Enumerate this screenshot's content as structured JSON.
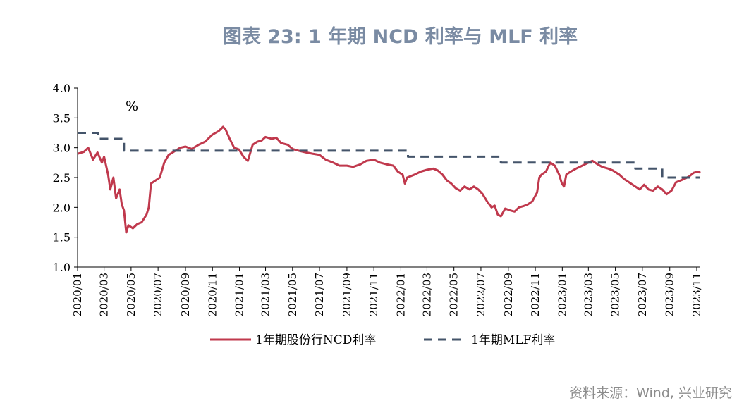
{
  "title": "图表 23: 1 年期 NCD 利率与 MLF 利率",
  "source": "资料来源：Wind, 兴业研究",
  "chart_data": {
    "type": "line",
    "title": "图表 23: 1 年期 NCD 利率与 MLF 利率",
    "unit_label": "%",
    "xlabel": "",
    "ylabel": "%",
    "x_range": [
      "2020-01-01",
      "2023-11-09"
    ],
    "ylim": [
      1.0,
      4.0
    ],
    "y_ticks": [
      "1.0",
      "1.5",
      "2.0",
      "2.5",
      "3.0",
      "3.5",
      "4.0"
    ],
    "x_ticks": [
      "2020/01",
      "2020/03",
      "2020/05",
      "2020/07",
      "2020/09",
      "2020/11",
      "2021/01",
      "2021/03",
      "2021/05",
      "2021/07",
      "2021/09",
      "2021/11",
      "2022/01",
      "2022/03",
      "2022/05",
      "2022/07",
      "2022/09",
      "2022/11",
      "2023/01",
      "2023/03",
      "2023/05",
      "2023/07",
      "2023/09",
      "2023/11"
    ],
    "legend_position": "bottom",
    "grid": false,
    "series": [
      {
        "name": "1年期股份行NCD利率",
        "style": "solid",
        "color": "#c0394d",
        "points": [
          [
            "2020-01-02",
            2.9
          ],
          [
            "2020-01-15",
            2.93
          ],
          [
            "2020-01-25",
            3.0
          ],
          [
            "2020-02-05",
            2.8
          ],
          [
            "2020-02-15",
            2.92
          ],
          [
            "2020-02-25",
            2.75
          ],
          [
            "2020-03-01",
            2.85
          ],
          [
            "2020-03-10",
            2.55
          ],
          [
            "2020-03-15",
            2.3
          ],
          [
            "2020-03-22",
            2.5
          ],
          [
            "2020-03-28",
            2.15
          ],
          [
            "2020-04-05",
            2.3
          ],
          [
            "2020-04-10",
            2.05
          ],
          [
            "2020-04-15",
            1.95
          ],
          [
            "2020-04-20",
            1.58
          ],
          [
            "2020-04-25",
            1.7
          ],
          [
            "2020-05-05",
            1.65
          ],
          [
            "2020-05-15",
            1.72
          ],
          [
            "2020-05-25",
            1.75
          ],
          [
            "2020-06-05",
            1.88
          ],
          [
            "2020-06-10",
            2.0
          ],
          [
            "2020-06-15",
            2.4
          ],
          [
            "2020-06-25",
            2.45
          ],
          [
            "2020-07-05",
            2.5
          ],
          [
            "2020-07-15",
            2.75
          ],
          [
            "2020-07-25",
            2.88
          ],
          [
            "2020-08-05",
            2.93
          ],
          [
            "2020-08-20",
            3.0
          ],
          [
            "2020-09-01",
            3.02
          ],
          [
            "2020-09-15",
            2.98
          ],
          [
            "2020-10-01",
            3.05
          ],
          [
            "2020-10-15",
            3.1
          ],
          [
            "2020-11-01",
            3.22
          ],
          [
            "2020-11-15",
            3.28
          ],
          [
            "2020-11-25",
            3.35
          ],
          [
            "2020-12-01",
            3.3
          ],
          [
            "2020-12-10",
            3.15
          ],
          [
            "2020-12-20",
            3.0
          ],
          [
            "2020-12-31",
            2.97
          ],
          [
            "2021-01-10",
            2.85
          ],
          [
            "2021-01-20",
            2.78
          ],
          [
            "2021-01-31",
            3.05
          ],
          [
            "2021-02-10",
            3.1
          ],
          [
            "2021-02-20",
            3.12
          ],
          [
            "2021-03-01",
            3.18
          ],
          [
            "2021-03-15",
            3.15
          ],
          [
            "2021-03-25",
            3.17
          ],
          [
            "2021-04-05",
            3.08
          ],
          [
            "2021-04-20",
            3.05
          ],
          [
            "2021-05-01",
            2.98
          ],
          [
            "2021-05-15",
            2.95
          ],
          [
            "2021-06-01",
            2.92
          ],
          [
            "2021-06-15",
            2.9
          ],
          [
            "2021-07-01",
            2.88
          ],
          [
            "2021-07-15",
            2.8
          ],
          [
            "2021-08-01",
            2.75
          ],
          [
            "2021-08-15",
            2.7
          ],
          [
            "2021-09-01",
            2.7
          ],
          [
            "2021-09-15",
            2.68
          ],
          [
            "2021-10-01",
            2.72
          ],
          [
            "2021-10-15",
            2.78
          ],
          [
            "2021-11-01",
            2.8
          ],
          [
            "2021-11-15",
            2.75
          ],
          [
            "2021-12-01",
            2.72
          ],
          [
            "2021-12-15",
            2.7
          ],
          [
            "2021-12-25",
            2.6
          ],
          [
            "2022-01-05",
            2.55
          ],
          [
            "2022-01-10",
            2.4
          ],
          [
            "2022-01-15",
            2.5
          ],
          [
            "2022-02-01",
            2.55
          ],
          [
            "2022-02-15",
            2.6
          ],
          [
            "2022-03-01",
            2.63
          ],
          [
            "2022-03-15",
            2.65
          ],
          [
            "2022-03-25",
            2.62
          ],
          [
            "2022-04-05",
            2.55
          ],
          [
            "2022-04-15",
            2.45
          ],
          [
            "2022-04-25",
            2.4
          ],
          [
            "2022-05-05",
            2.32
          ],
          [
            "2022-05-15",
            2.28
          ],
          [
            "2022-05-25",
            2.35
          ],
          [
            "2022-06-05",
            2.3
          ],
          [
            "2022-06-15",
            2.35
          ],
          [
            "2022-06-25",
            2.3
          ],
          [
            "2022-07-05",
            2.22
          ],
          [
            "2022-07-15",
            2.1
          ],
          [
            "2022-07-25",
            2.0
          ],
          [
            "2022-08-01",
            2.03
          ],
          [
            "2022-08-08",
            1.88
          ],
          [
            "2022-08-15",
            1.85
          ],
          [
            "2022-08-25",
            1.98
          ],
          [
            "2022-09-05",
            1.95
          ],
          [
            "2022-09-15",
            1.93
          ],
          [
            "2022-09-25",
            2.0
          ],
          [
            "2022-10-05",
            2.02
          ],
          [
            "2022-10-15",
            2.05
          ],
          [
            "2022-10-25",
            2.1
          ],
          [
            "2022-11-05",
            2.25
          ],
          [
            "2022-11-10",
            2.5
          ],
          [
            "2022-11-15",
            2.55
          ],
          [
            "2022-11-25",
            2.6
          ],
          [
            "2022-12-05",
            2.75
          ],
          [
            "2022-12-15",
            2.7
          ],
          [
            "2022-12-25",
            2.55
          ],
          [
            "2022-12-31",
            2.4
          ],
          [
            "2023-01-05",
            2.35
          ],
          [
            "2023-01-10",
            2.55
          ],
          [
            "2023-01-20",
            2.6
          ],
          [
            "2023-02-01",
            2.65
          ],
          [
            "2023-02-15",
            2.7
          ],
          [
            "2023-03-01",
            2.75
          ],
          [
            "2023-03-10",
            2.78
          ],
          [
            "2023-03-20",
            2.73
          ],
          [
            "2023-04-01",
            2.68
          ],
          [
            "2023-04-15",
            2.65
          ],
          [
            "2023-04-25",
            2.62
          ],
          [
            "2023-05-10",
            2.55
          ],
          [
            "2023-05-20",
            2.48
          ],
          [
            "2023-06-01",
            2.42
          ],
          [
            "2023-06-15",
            2.35
          ],
          [
            "2023-06-25",
            2.3
          ],
          [
            "2023-07-05",
            2.38
          ],
          [
            "2023-07-15",
            2.3
          ],
          [
            "2023-07-25",
            2.28
          ],
          [
            "2023-08-05",
            2.35
          ],
          [
            "2023-08-15",
            2.3
          ],
          [
            "2023-08-25",
            2.22
          ],
          [
            "2023-09-05",
            2.28
          ],
          [
            "2023-09-15",
            2.42
          ],
          [
            "2023-09-25",
            2.45
          ],
          [
            "2023-10-05",
            2.48
          ],
          [
            "2023-10-15",
            2.52
          ],
          [
            "2023-10-25",
            2.58
          ],
          [
            "2023-11-05",
            2.6
          ],
          [
            "2023-11-09",
            2.58
          ]
        ]
      },
      {
        "name": "1年期MLF利率",
        "style": "dashed",
        "color": "#44546a",
        "points": [
          [
            "2020-01-01",
            3.25
          ],
          [
            "2020-02-17",
            3.25
          ],
          [
            "2020-02-17",
            3.15
          ],
          [
            "2020-04-15",
            3.15
          ],
          [
            "2020-04-15",
            2.95
          ],
          [
            "2022-01-17",
            2.95
          ],
          [
            "2022-01-17",
            2.85
          ],
          [
            "2022-08-15",
            2.85
          ],
          [
            "2022-08-15",
            2.75
          ],
          [
            "2023-06-15",
            2.75
          ],
          [
            "2023-06-15",
            2.65
          ],
          [
            "2023-08-15",
            2.65
          ],
          [
            "2023-08-15",
            2.5
          ],
          [
            "2023-11-09",
            2.5
          ]
        ]
      }
    ]
  }
}
